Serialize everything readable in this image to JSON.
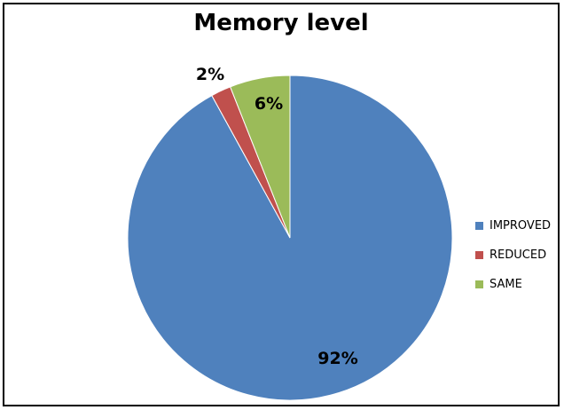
{
  "chart_data": {
    "type": "pie",
    "title": "Memory level",
    "categories": [
      "IMPROVED",
      "REDUCED",
      "SAME"
    ],
    "values": [
      92,
      2,
      6
    ],
    "labels": [
      "92%",
      "2%",
      "6%"
    ],
    "colors": [
      "#4F81BD",
      "#C0504D",
      "#9BBB59"
    ],
    "legend_position": "right"
  }
}
